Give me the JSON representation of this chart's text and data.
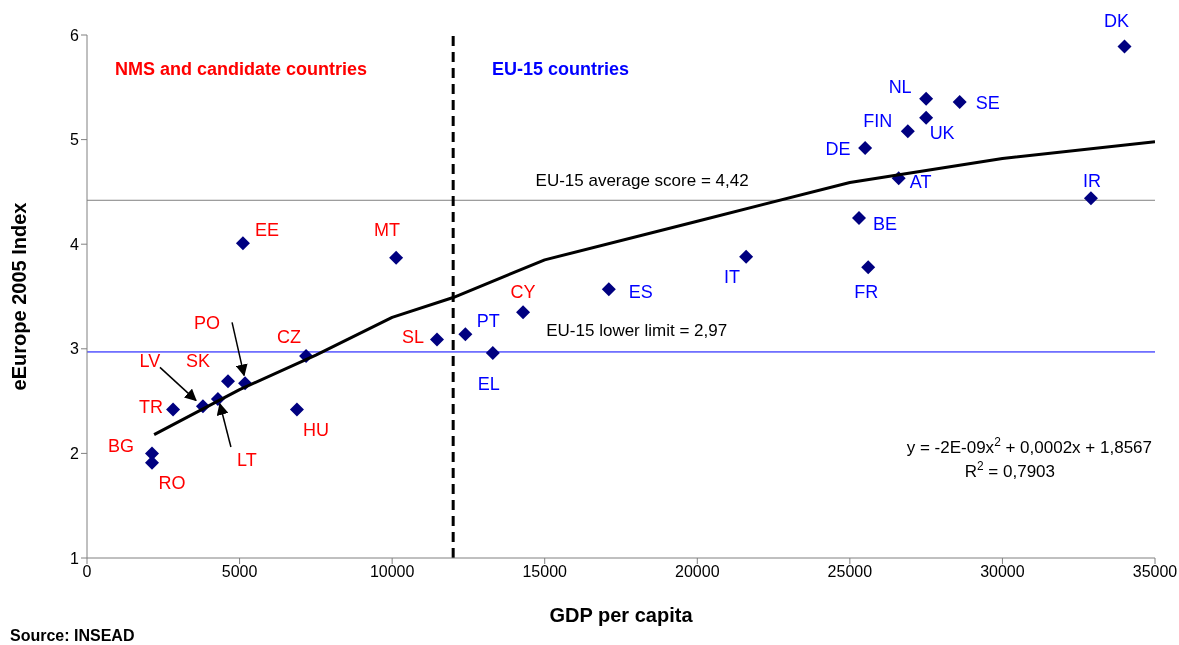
{
  "chart_data": {
    "type": "scatter",
    "xlabel": "GDP per capita",
    "ylabel": "eEurope 2005 Index",
    "xlim": [
      0,
      35000
    ],
    "xticks": [
      0,
      5000,
      10000,
      15000,
      20000,
      25000,
      30000,
      35000
    ],
    "ylim": [
      1,
      6
    ],
    "yticks": [
      1,
      2,
      3,
      4,
      5,
      6
    ],
    "marker": "diamond",
    "series": [
      {
        "color": "#000080",
        "x": [
          5110,
          10130,
          11470,
          14290,
          7180,
          4620,
          5180,
          3800,
          4290,
          2820,
          6880,
          2130,
          2130
        ],
        "values": [
          4.01,
          3.87,
          3.09,
          3.35,
          2.93,
          2.69,
          2.67,
          2.45,
          2.52,
          2.42,
          2.42,
          2.0,
          1.91
        ],
        "value_labels": [
          "EE",
          "MT",
          "SL",
          "CY",
          "CZ",
          "SK",
          "PO",
          "LV",
          "LT",
          "TR",
          "HU",
          "BG",
          "RO"
        ]
      },
      {
        "color": "#000080",
        "x": [
          34000,
          27500,
          28600,
          27500,
          26900,
          25500,
          26600,
          25300,
          25600,
          32900,
          21600,
          17100,
          12400,
          13300
        ],
        "values": [
          5.89,
          5.39,
          5.36,
          5.21,
          5.08,
          4.92,
          4.63,
          4.25,
          3.78,
          4.44,
          3.88,
          3.57,
          3.14,
          2.96
        ],
        "value_labels": [
          "DK",
          "NL",
          "SE",
          "UK",
          "FIN",
          "DE",
          "AT",
          "BE",
          "FR",
          "IR",
          "IT",
          "ES",
          "PT",
          "EL"
        ]
      },
      {
        "type": "line",
        "marker": "none",
        "color": "#000000",
        "x": [
          2200,
          5000,
          7500,
          10000,
          12000,
          15000,
          20000,
          25000,
          30000,
          35000
        ],
        "values": [
          2.18,
          2.61,
          2.94,
          3.3,
          3.49,
          3.85,
          4.22,
          4.59,
          4.82,
          4.98
        ]
      }
    ],
    "ref_lines": [
      {
        "axis": "y",
        "value": 4.42,
        "label": "EU-15 average score = 4,42",
        "color": "#808080"
      },
      {
        "axis": "y",
        "value": 2.97,
        "label": "EU-15 lower limit = 2,97",
        "color": "#0000ff"
      },
      {
        "axis": "x",
        "value": 12000,
        "color": "#000000",
        "line_style": "dashed"
      }
    ],
    "annotations": [
      "NMS and candidate countries",
      "EU-15 countries",
      "y = -2E-09x$^{2}$ + 0,0002x + 1,8567",
      "R$^{2}$ = 0,7903",
      "Source: INSEAD"
    ]
  }
}
